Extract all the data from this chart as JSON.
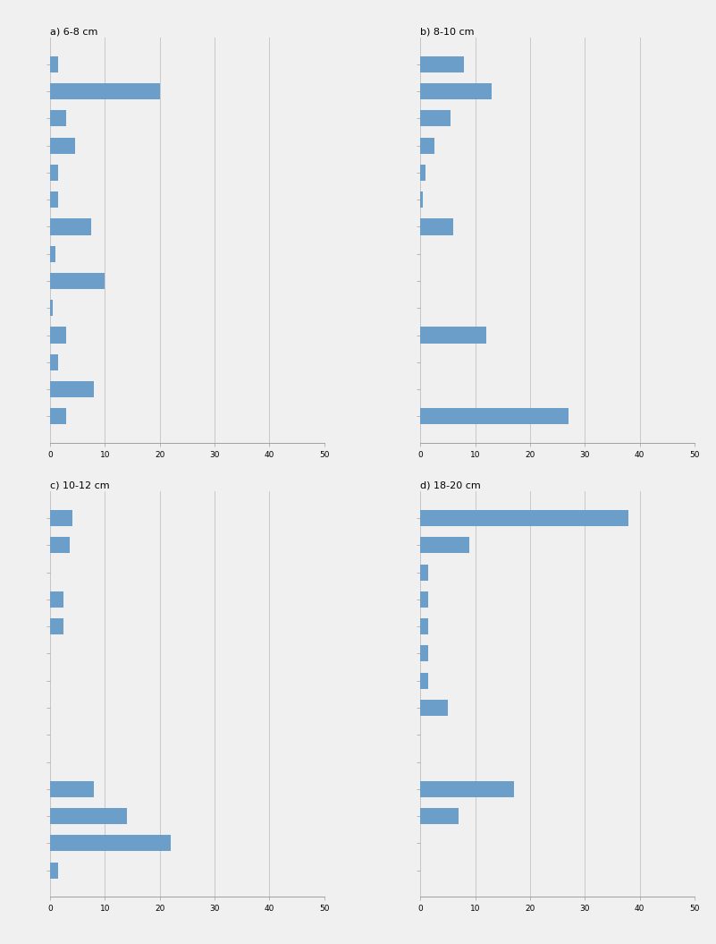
{
  "charts": [
    {
      "title": "a) 6-8 cm",
      "values": [
        1.5,
        20.0,
        3.0,
        4.5,
        1.5,
        1.5,
        7.5,
        1.0,
        10.0,
        0.5,
        3.0,
        1.5,
        8.0,
        3.0
      ],
      "xlim": 50
    },
    {
      "title": "b) 8-10 cm",
      "values": [
        8.0,
        13.0,
        5.5,
        2.5,
        1.0,
        0.5,
        6.0,
        0.0,
        0.0,
        0.0,
        12.0,
        0.0,
        0.0,
        27.0
      ],
      "xlim": 50
    },
    {
      "title": "c) 10-12 cm",
      "values": [
        4.0,
        3.5,
        0.0,
        2.5,
        2.5,
        0.0,
        0.0,
        0.0,
        0.0,
        0.0,
        8.0,
        14.0,
        22.0,
        1.5
      ],
      "xlim": 50
    },
    {
      "title": "d) 18-20 cm",
      "values": [
        38.0,
        9.0,
        1.5,
        1.5,
        1.5,
        1.5,
        1.5,
        5.0,
        0.0,
        0.0,
        17.0,
        7.0,
        0.0,
        0.0
      ],
      "xlim": 50
    }
  ],
  "n_bars": 14,
  "bar_color": "#6b9ec8",
  "background_color": "#f0f0f0",
  "grid_color": "#c8c8c8",
  "spine_color": "#a0a0a0",
  "tick_fontsize": 6.5,
  "title_fontsize": 8,
  "xtick_step": 10
}
